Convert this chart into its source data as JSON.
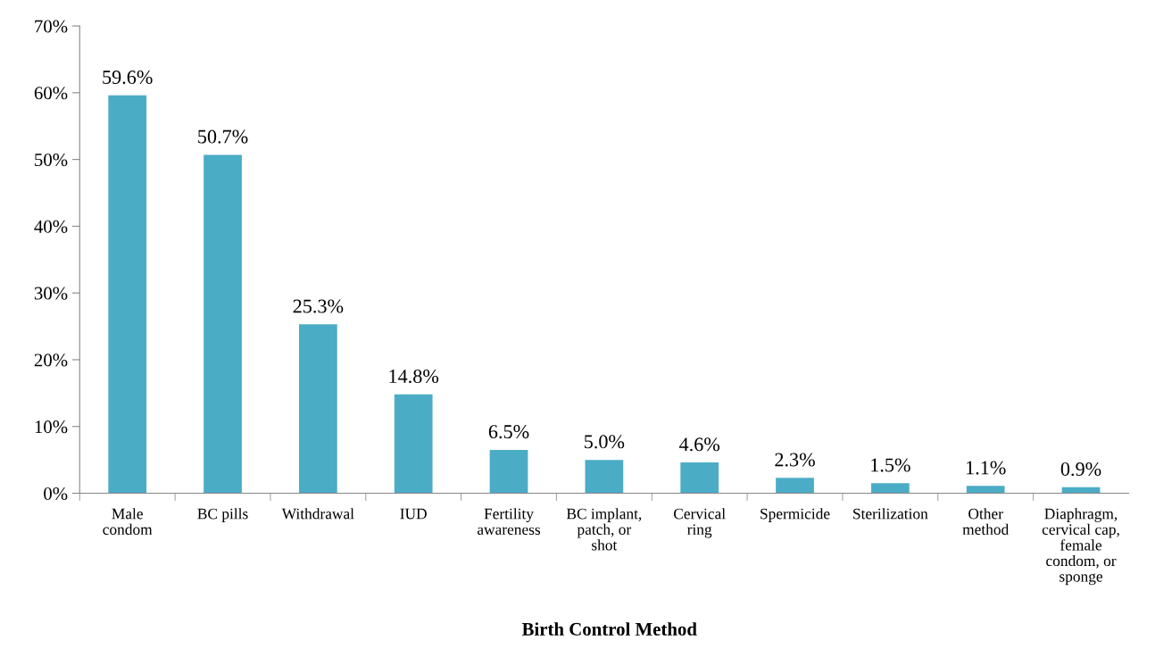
{
  "chart_data": {
    "type": "bar",
    "xlabel": "Birth Control Method",
    "categories": [
      "Male\ncondom",
      "BC pills",
      "Withdrawal",
      "IUD",
      "Fertility\nawareness",
      "BC implant,\npatch, or\nshot",
      "Cervical\nring",
      "Spermicide",
      "Sterilization",
      "Other\nmethod",
      "Diaphragm,\ncervical cap,\nfemale\ncondom, or\nsponge"
    ],
    "values": [
      59.6,
      50.7,
      25.3,
      14.8,
      6.5,
      5.0,
      4.6,
      2.3,
      1.5,
      1.1,
      0.9
    ],
    "value_labels": [
      "59.6%",
      "50.7%",
      "25.3%",
      "14.8%",
      "6.5%",
      "5.0%",
      "4.6%",
      "2.3%",
      "1.5%",
      "1.1%",
      "0.9%"
    ],
    "color": "#4bacc6",
    "ylim": [
      0,
      70
    ],
    "yticks": [
      {
        "value": 0,
        "label": "0%"
      },
      {
        "value": 10,
        "label": "10%"
      },
      {
        "value": 20,
        "label": "20%"
      },
      {
        "value": 30,
        "label": "30%"
      },
      {
        "value": 40,
        "label": "40%"
      },
      {
        "value": 50,
        "label": "50%"
      },
      {
        "value": 60,
        "label": "60%"
      },
      {
        "value": 70,
        "label": "70%"
      }
    ],
    "grid": false
  }
}
